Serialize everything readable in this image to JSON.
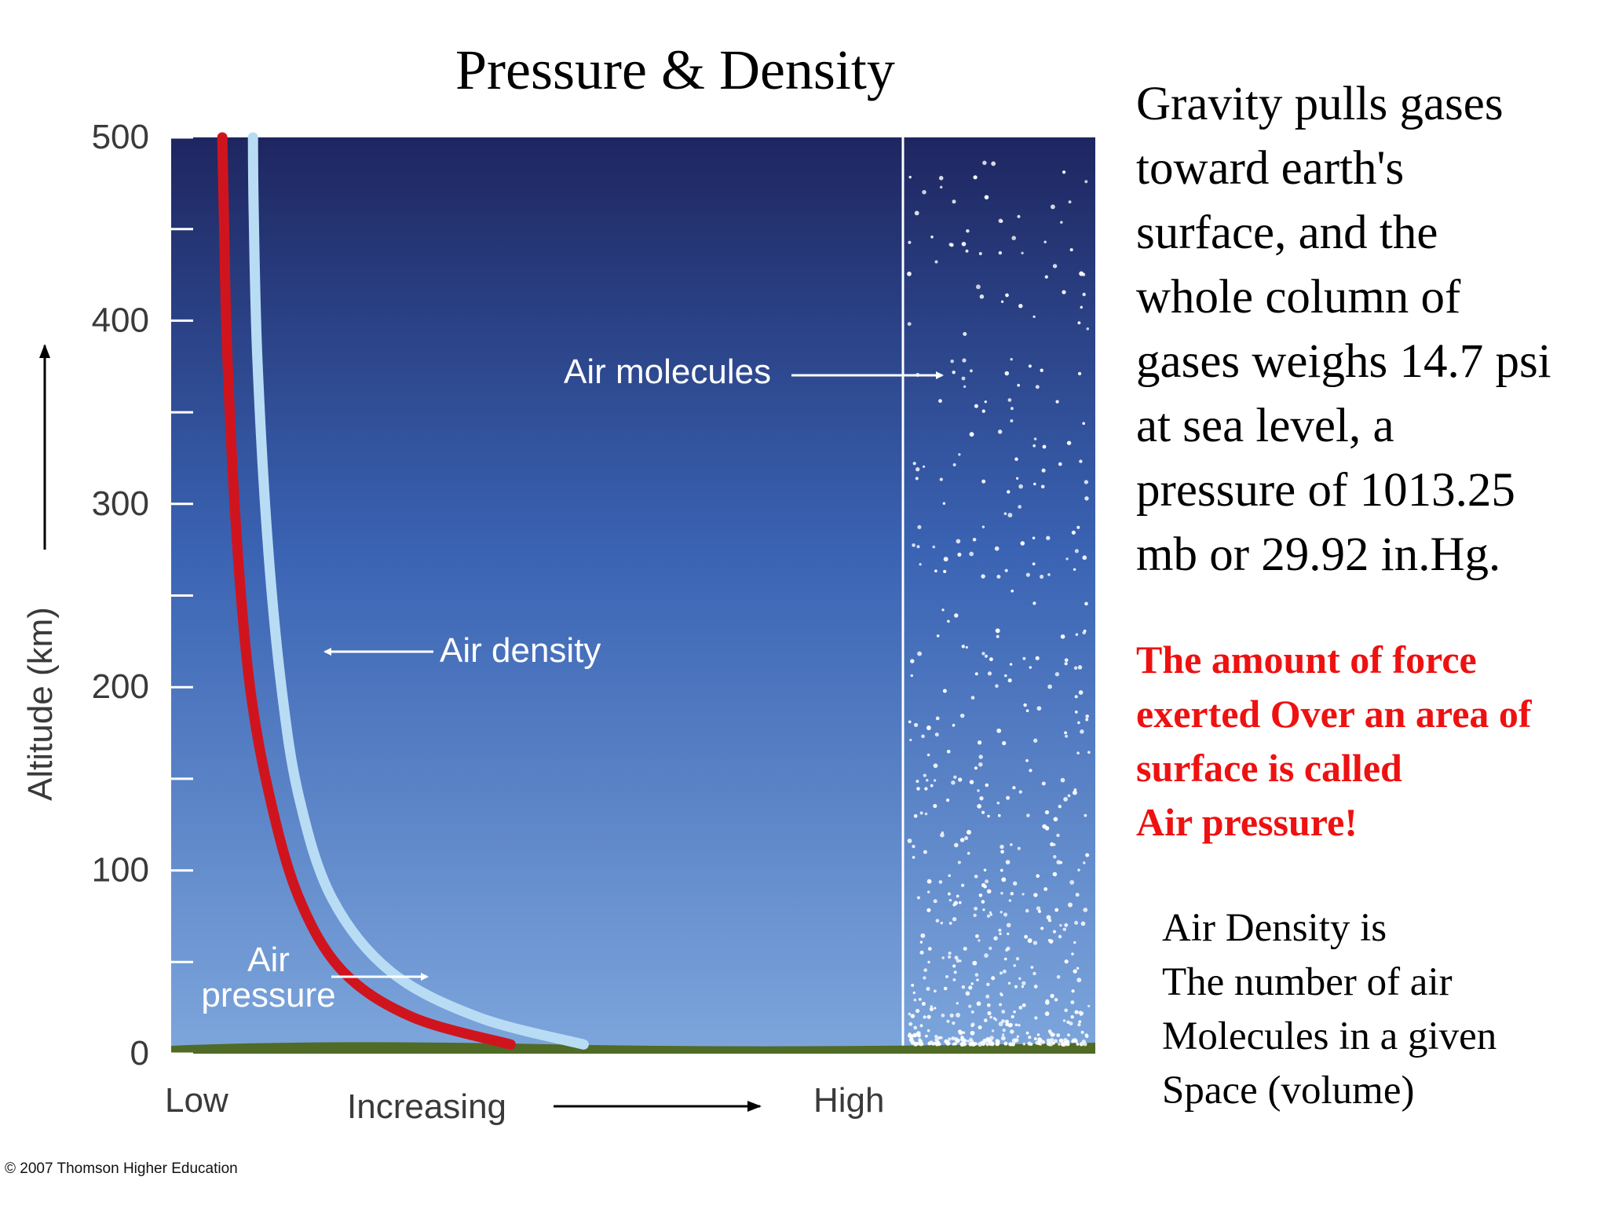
{
  "slide": {
    "title": "Pressure & Density",
    "main_text": [
      "Gravity pulls gases",
      "toward earth's",
      "surface, and the",
      "whole column of",
      "gases weighs 14.7 psi",
      "at sea level, a",
      "pressure of 1013.25",
      "mb or 29.92 in.Hg."
    ],
    "definition_red": [
      "The amount of force",
      "exerted Over an area of",
      "surface is called",
      "Air pressure!"
    ],
    "definition_density": [
      "Air Density is",
      "The number of air",
      "Molecules in a given",
      "Space (volume)"
    ],
    "copyright": "© 2007 Thomson Higher Education"
  },
  "colors": {
    "sky_top": "#1e2660",
    "sky_bottom": "#7da6dc",
    "pressure_curve": "#d0141e",
    "density_curve": "#b9dcf5",
    "ground": "#4f6b26",
    "red_text": "#ee1111"
  },
  "chart_data": {
    "type": "line",
    "ylabel": "Altitude (km)",
    "yticks": [
      0,
      100,
      200,
      300,
      400,
      500
    ],
    "ylim": [
      0,
      500
    ],
    "x_labels": {
      "low": "Low",
      "mid": "Increasing",
      "high": "High"
    },
    "grid": false,
    "series": [
      {
        "name": "Air pressure",
        "color": "#d0141e",
        "x": [
          0.465,
          0.33,
          0.235,
          0.175,
          0.135,
          0.108,
          0.09,
          0.077,
          0.072,
          0.07
        ],
        "y": [
          5,
          20,
          45,
          85,
          140,
          200,
          280,
          380,
          460,
          500
        ]
      },
      {
        "name": "Air density",
        "color": "#b9dcf5",
        "x": [
          0.565,
          0.42,
          0.3,
          0.22,
          0.175,
          0.151,
          0.132,
          0.118,
          0.113,
          0.112
        ],
        "y": [
          5,
          20,
          45,
          85,
          140,
          200,
          280,
          380,
          460,
          500
        ]
      }
    ],
    "annotations": [
      {
        "text": "Air density",
        "points_to": "Air density"
      },
      {
        "text": "Air pressure",
        "points_to": "Air pressure"
      },
      {
        "text": "Air molecules",
        "points_to": "molecule-column"
      }
    ]
  }
}
